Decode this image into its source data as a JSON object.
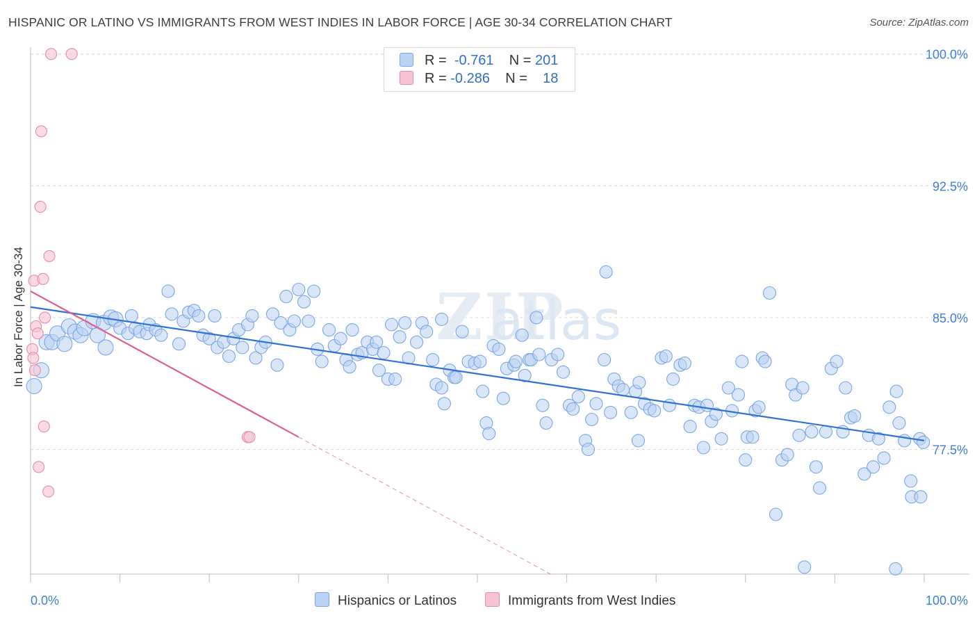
{
  "title": "HISPANIC OR LATINO VS IMMIGRANTS FROM WEST INDIES IN LABOR FORCE | AGE 30-34 CORRELATION CHART",
  "source": "Source: ZipAtlas.com",
  "watermark": "ZIPatlas",
  "colors": {
    "blue_fill": "#b9d1f3",
    "blue_stroke": "#7aa6e6",
    "blue_line": "#2f72d6",
    "pink_fill": "#f7c3d3",
    "pink_stroke": "#e98aa8",
    "pink_line": "#e0608c",
    "grid": "#d9d9d9",
    "tick_label": "#3f7fd4"
  },
  "legend": {
    "rows": [
      {
        "r_label": "R =",
        "r_value": "-0.761",
        "n_label": "N =",
        "n_value": "201"
      },
      {
        "r_label": "R =",
        "r_value": "-0.286",
        "n_label": "N =",
        "n_value": "18"
      }
    ]
  },
  "bottom_legend": [
    "Hispanics or Latinos",
    "Immigrants from West Indies"
  ],
  "chart_data": {
    "type": "scatter",
    "title": "HISPANIC OR LATINO VS IMMIGRANTS FROM WEST INDIES IN LABOR FORCE | AGE 30-34 CORRELATION CHART",
    "xlabel": "",
    "ylabel": "In Labor Force | Age 30-34",
    "xlim": [
      0,
      100
    ],
    "ylim": [
      70.4,
      100.7
    ],
    "x_tick_labels": {
      "left": "0.0%",
      "right": "100.0%"
    },
    "y_ticks": [
      {
        "value": 100.0,
        "label": "100.0%"
      },
      {
        "value": 92.5,
        "label": "92.5%"
      },
      {
        "value": 85.0,
        "label": "85.0%"
      },
      {
        "value": 77.5,
        "label": "77.5%"
      }
    ],
    "series": [
      {
        "name": "Hispanics or Latinos",
        "R": -0.761,
        "N": 201,
        "trend": {
          "x0": 0.0,
          "y0": 85.6,
          "x1": 100.0,
          "y1": 78.0
        },
        "points": [
          [
            0.4,
            81.1
          ],
          [
            1.2,
            82.0
          ],
          [
            1.8,
            83.6
          ],
          [
            2.4,
            83.6
          ],
          [
            3.0,
            84.1
          ],
          [
            3.8,
            83.5
          ],
          [
            4.3,
            84.5
          ],
          [
            5.0,
            84.2
          ],
          [
            5.6,
            84.0
          ],
          [
            6.0,
            84.4
          ],
          [
            7.0,
            84.8
          ],
          [
            7.5,
            84.0
          ],
          [
            8.2,
            84.7
          ],
          [
            8.4,
            83.3
          ],
          [
            9.0,
            85.0
          ],
          [
            9.5,
            84.9
          ],
          [
            10.0,
            84.4
          ],
          [
            10.9,
            84.1
          ],
          [
            11.3,
            85.1
          ],
          [
            11.7,
            84.4
          ],
          [
            12.2,
            84.2
          ],
          [
            13.0,
            84.1
          ],
          [
            13.3,
            84.6
          ],
          [
            14.0,
            84.3
          ],
          [
            14.6,
            84.0
          ],
          [
            15.4,
            86.5
          ],
          [
            15.8,
            85.2
          ],
          [
            16.6,
            83.5
          ],
          [
            17.1,
            84.8
          ],
          [
            17.7,
            85.3
          ],
          [
            18.3,
            85.4
          ],
          [
            18.8,
            85.1
          ],
          [
            19.3,
            84.0
          ],
          [
            20.0,
            83.8
          ],
          [
            20.6,
            85.1
          ],
          [
            20.9,
            83.3
          ],
          [
            21.6,
            83.6
          ],
          [
            22.2,
            82.8
          ],
          [
            22.7,
            83.8
          ],
          [
            23.3,
            84.3
          ],
          [
            23.7,
            83.3
          ],
          [
            24.3,
            84.6
          ],
          [
            24.8,
            85.1
          ],
          [
            25.2,
            82.7
          ],
          [
            25.8,
            83.3
          ],
          [
            26.3,
            83.6
          ],
          [
            27.1,
            85.2
          ],
          [
            27.6,
            82.3
          ],
          [
            28.0,
            84.7
          ],
          [
            28.6,
            86.2
          ],
          [
            29.0,
            84.3
          ],
          [
            29.5,
            84.8
          ],
          [
            30.0,
            86.6
          ],
          [
            30.6,
            85.9
          ],
          [
            31.1,
            84.8
          ],
          [
            31.7,
            86.5
          ],
          [
            32.1,
            83.2
          ],
          [
            32.6,
            82.5
          ],
          [
            33.4,
            84.3
          ],
          [
            34.0,
            83.4
          ],
          [
            34.7,
            83.8
          ],
          [
            35.3,
            82.6
          ],
          [
            35.7,
            82.2
          ],
          [
            36.0,
            84.3
          ],
          [
            36.6,
            82.9
          ],
          [
            37.1,
            83.0
          ],
          [
            37.7,
            83.6
          ],
          [
            38.3,
            83.2
          ],
          [
            38.7,
            83.6
          ],
          [
            39.0,
            82.0
          ],
          [
            39.5,
            83.0
          ],
          [
            40.0,
            81.5
          ],
          [
            40.4,
            84.6
          ],
          [
            40.8,
            81.5
          ],
          [
            41.3,
            83.9
          ],
          [
            41.9,
            84.7
          ],
          [
            42.3,
            82.7
          ],
          [
            43.2,
            83.6
          ],
          [
            43.8,
            84.7
          ],
          [
            44.3,
            84.2
          ],
          [
            45.0,
            82.6
          ],
          [
            45.4,
            81.2
          ],
          [
            46.0,
            81.0
          ],
          [
            46.3,
            80.1
          ],
          [
            46.9,
            82.0
          ],
          [
            47.4,
            81.6
          ],
          [
            47.6,
            81.6
          ],
          [
            48.3,
            84.2
          ],
          [
            49.0,
            82.5
          ],
          [
            49.7,
            82.4
          ],
          [
            50.3,
            82.5
          ],
          [
            50.6,
            80.8
          ],
          [
            51.0,
            79.0
          ],
          [
            51.3,
            78.4
          ],
          [
            51.8,
            83.4
          ],
          [
            52.4,
            83.2
          ],
          [
            52.9,
            80.4
          ],
          [
            53.3,
            82.1
          ],
          [
            54.1,
            82.3
          ],
          [
            54.3,
            82.5
          ],
          [
            55.0,
            84.0
          ],
          [
            55.3,
            81.7
          ],
          [
            55.8,
            82.6
          ],
          [
            56.0,
            82.6
          ],
          [
            56.6,
            85.0
          ],
          [
            56.9,
            82.9
          ],
          [
            57.3,
            80.0
          ],
          [
            57.7,
            79.0
          ],
          [
            58.3,
            82.6
          ],
          [
            59.0,
            82.9
          ],
          [
            59.6,
            81.9
          ],
          [
            60.3,
            80.0
          ],
          [
            60.7,
            79.8
          ],
          [
            61.3,
            80.5
          ],
          [
            62.1,
            78.0
          ],
          [
            62.4,
            77.5
          ],
          [
            62.8,
            79.2
          ],
          [
            63.3,
            80.1
          ],
          [
            64.2,
            82.6
          ],
          [
            64.9,
            79.6
          ],
          [
            65.3,
            81.5
          ],
          [
            65.8,
            81.1
          ],
          [
            66.3,
            80.9
          ],
          [
            67.2,
            79.6
          ],
          [
            67.7,
            80.8
          ],
          [
            68.1,
            81.3
          ],
          [
            68.7,
            80.1
          ],
          [
            69.3,
            79.8
          ],
          [
            69.8,
            79.7
          ],
          [
            70.6,
            82.7
          ],
          [
            71.1,
            82.8
          ],
          [
            71.5,
            80.0
          ],
          [
            71.9,
            81.5
          ],
          [
            72.7,
            82.3
          ],
          [
            73.2,
            82.4
          ],
          [
            73.8,
            78.8
          ],
          [
            74.3,
            80.0
          ],
          [
            74.8,
            79.9
          ],
          [
            75.3,
            77.6
          ],
          [
            75.7,
            80.0
          ],
          [
            76.2,
            79.1
          ],
          [
            76.7,
            79.5
          ],
          [
            77.3,
            78.1
          ],
          [
            78.1,
            81.0
          ],
          [
            78.5,
            79.7
          ],
          [
            79.2,
            80.6
          ],
          [
            79.6,
            82.5
          ],
          [
            80.0,
            76.9
          ],
          [
            80.2,
            78.2
          ],
          [
            80.8,
            78.2
          ],
          [
            81.1,
            79.7
          ],
          [
            81.5,
            79.9
          ],
          [
            81.9,
            82.7
          ],
          [
            82.2,
            82.5
          ],
          [
            82.7,
            86.4
          ],
          [
            83.4,
            73.8
          ],
          [
            84.1,
            76.9
          ],
          [
            84.7,
            77.2
          ],
          [
            85.2,
            81.2
          ],
          [
            85.6,
            80.6
          ],
          [
            86.0,
            78.3
          ],
          [
            86.4,
            81.0
          ],
          [
            87.4,
            78.5
          ],
          [
            87.9,
            76.5
          ],
          [
            88.3,
            75.3
          ],
          [
            89.0,
            78.5
          ],
          [
            89.6,
            82.1
          ],
          [
            90.2,
            82.5
          ],
          [
            90.9,
            78.5
          ],
          [
            91.2,
            81.0
          ],
          [
            91.8,
            79.3
          ],
          [
            92.2,
            79.4
          ],
          [
            93.3,
            76.1
          ],
          [
            93.8,
            78.3
          ],
          [
            94.3,
            76.5
          ],
          [
            94.9,
            78.1
          ],
          [
            95.5,
            77.0
          ],
          [
            96.1,
            79.9
          ],
          [
            96.9,
            80.8
          ],
          [
            97.2,
            79.0
          ],
          [
            97.8,
            78.0
          ],
          [
            98.5,
            75.7
          ],
          [
            99.5,
            78.1
          ],
          [
            99.9,
            77.9
          ],
          [
            98.6,
            74.8
          ],
          [
            99.6,
            74.8
          ],
          [
            46.0,
            84.9
          ],
          [
            64.4,
            87.6
          ],
          [
            86.6,
            70.8
          ],
          [
            96.8,
            70.7
          ],
          [
            68.0,
            78.0
          ]
        ]
      },
      {
        "name": "Immigrants from West Indies",
        "R": -0.286,
        "N": 18,
        "trend": {
          "x0": 0.0,
          "y0": 86.5,
          "x1": 30.0,
          "y1": 78.2
        },
        "points": [
          [
            0.2,
            83.2
          ],
          [
            0.3,
            82.7
          ],
          [
            0.4,
            87.1
          ],
          [
            0.5,
            82.0
          ],
          [
            0.6,
            84.5
          ],
          [
            0.9,
            76.5
          ],
          [
            1.1,
            91.3
          ],
          [
            1.2,
            95.6
          ],
          [
            1.4,
            87.2
          ],
          [
            1.5,
            78.8
          ],
          [
            1.6,
            85.0
          ],
          [
            2.0,
            75.1
          ],
          [
            2.1,
            88.5
          ],
          [
            2.3,
            100.0
          ],
          [
            4.6,
            100.0
          ],
          [
            24.3,
            78.2
          ],
          [
            24.5,
            78.2
          ],
          [
            0.8,
            84.1
          ]
        ]
      }
    ]
  }
}
